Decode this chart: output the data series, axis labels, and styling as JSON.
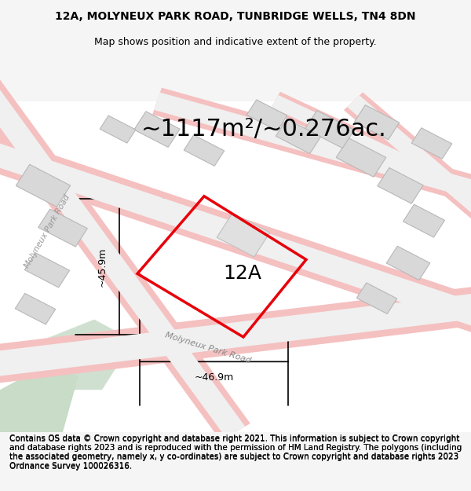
{
  "title_line1": "12A, MOLYNEUX PARK ROAD, TUNBRIDGE WELLS, TN4 8DN",
  "title_line2": "Map shows position and indicative extent of the property.",
  "area_text": "~1117m²/~0.276ac.",
  "label_12A": "12A",
  "dim_height": "~45.9m",
  "dim_width": "~46.9m",
  "road_label": "Molyneux Park Road",
  "road_label2": "Molyneux Park Road",
  "footer_text": "Contains OS data © Crown copyright and database right 2021. This information is subject to Crown copyright and database rights 2023 and is reproduced with the permission of HM Land Registry. The polygons (including the associated geometry, namely x, y co-ordinates) are subject to Crown copyright and database rights 2023 Ordnance Survey 100026316.",
  "bg_color": "#f5f5f5",
  "map_bg": "#ffffff",
  "red_plot_color": "#e8000a",
  "building_color": "#d4d4d4",
  "building_edge": "#b0b0b0",
  "road_color": "#f0c8c8",
  "green_area_color": "#c8dcc8",
  "dim_line_color": "#000000",
  "title_fontsize": 10,
  "subtitle_fontsize": 9,
  "area_fontsize": 22,
  "label_fontsize": 18,
  "footer_fontsize": 7.5
}
